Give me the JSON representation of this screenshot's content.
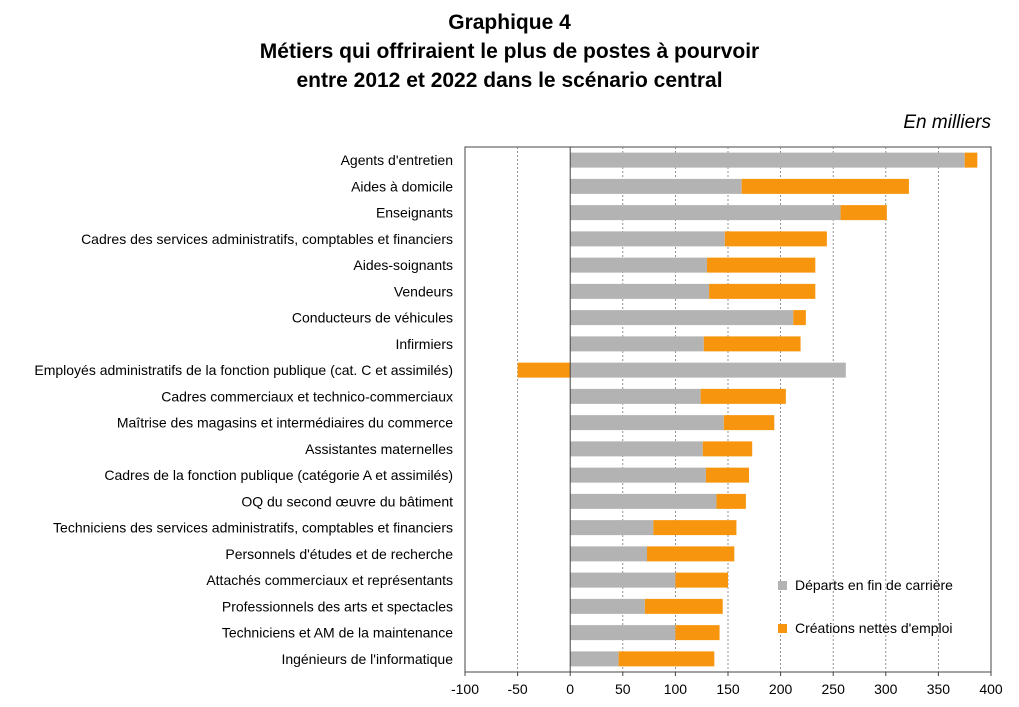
{
  "titles": {
    "line1": "Graphique 4",
    "line2": "Métiers qui offriraient le plus de postes à pourvoir",
    "line3": "entre 2012 et 2022 dans le scénario central"
  },
  "units_label": "En milliers",
  "colors": {
    "departs": "#b3b3b3",
    "creations": "#f7960e",
    "grid": "#777777",
    "axis": "#444444"
  },
  "chart_data": {
    "type": "bar",
    "orientation": "horizontal",
    "stacked": true,
    "categories": [
      "Agents d'entretien",
      "Aides à domicile",
      "Enseignants",
      "Cadres des services administratifs, comptables et financiers",
      "Aides-soignants",
      "Vendeurs",
      "Conducteurs de véhicules",
      "Infirmiers",
      "Employés administratifs de la fonction publique (cat. C et assimilés)",
      "Cadres commerciaux et technico-commerciaux",
      "Maîtrise des magasins et intermédiaires du commerce",
      "Assistantes maternelles",
      "Cadres de la fonction publique (catégorie A et assimilés)",
      "OQ du second œuvre du bâtiment",
      "Techniciens des services administratifs, comptables et financiers",
      "Personnels d'études et de recherche",
      "Attachés commerciaux et représentants",
      "Professionnels des arts et spectacles",
      "Techniciens et AM de la maintenance",
      "Ingénieurs de l'informatique"
    ],
    "series": [
      {
        "name": "Départs en fin de carrière",
        "values": [
          375,
          163,
          257,
          147,
          130,
          132,
          212,
          127,
          262,
          124,
          146,
          126,
          129,
          139,
          79,
          73,
          100,
          71,
          100,
          46
        ]
      },
      {
        "name": "Créations nettes d'emploi",
        "values": [
          12,
          159,
          44,
          97,
          103,
          101,
          12,
          92,
          -50,
          81,
          48,
          47,
          41,
          28,
          79,
          83,
          50,
          74,
          42,
          91
        ]
      }
    ],
    "xlim": [
      -100,
      400
    ],
    "xticks": [
      -100,
      -50,
      0,
      50,
      100,
      150,
      200,
      250,
      300,
      350,
      400
    ],
    "grid": "vertical dashed",
    "legend_position": "bottom-right"
  }
}
